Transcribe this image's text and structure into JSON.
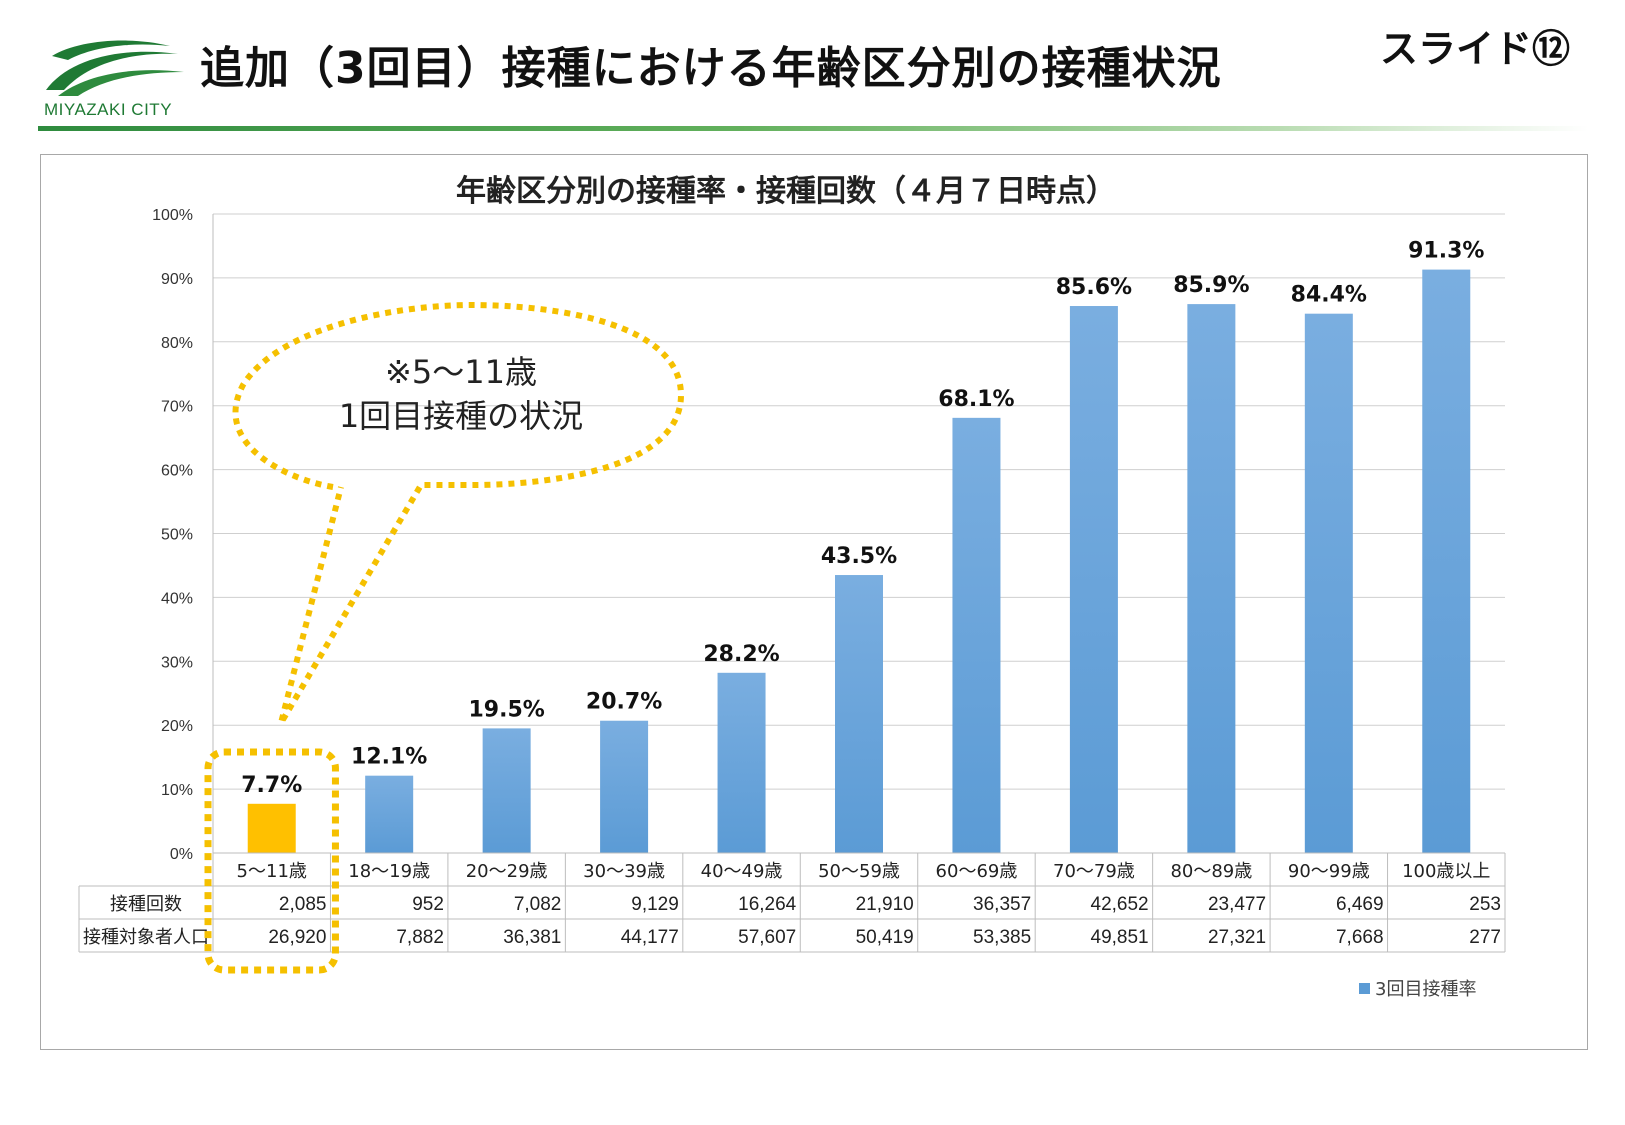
{
  "header": {
    "logo_text": "MIYAZAKI CITY",
    "title": "追加（3回目）接種における年齢区分別の接種状況",
    "slide_no": "スライド⑫"
  },
  "chart_data": {
    "type": "bar",
    "title": "年齢区分別の接種率・接種回数（４月７日時点）",
    "categories": [
      "5～11歳",
      "18～19歳",
      "20～29歳",
      "30～39歳",
      "40～49歳",
      "50～59歳",
      "60～69歳",
      "70～79歳",
      "80～89歳",
      "90～99歳",
      "100歳以上"
    ],
    "series": [
      {
        "name": "3回目接種率",
        "values": [
          7.7,
          12.1,
          19.5,
          20.7,
          28.2,
          43.5,
          68.1,
          85.6,
          85.9,
          84.4,
          91.3
        ],
        "labels": [
          "7.7%",
          "12.1%",
          "19.5%",
          "20.7%",
          "28.2%",
          "43.5%",
          "68.1%",
          "85.6%",
          "85.9%",
          "84.4%",
          "91.3%"
        ]
      }
    ],
    "ylim": [
      0,
      100
    ],
    "yticks": [
      "0%",
      "10%",
      "20%",
      "30%",
      "40%",
      "50%",
      "60%",
      "70%",
      "80%",
      "90%",
      "100%"
    ],
    "grid": true,
    "legend": "bottom-right",
    "highlight_index": 0,
    "colors": {
      "bar": "#5b9bd5",
      "bar_top": "#7aaee0",
      "highlight": "#ffc000",
      "callout": "#f5c000"
    },
    "callout": {
      "line1": "※5～11歳",
      "line2": "1回目接種の状況"
    },
    "table": {
      "rows": [
        {
          "label": "接種回数",
          "values": [
            "2,085",
            "952",
            "7,082",
            "9,129",
            "16,264",
            "21,910",
            "36,357",
            "42,652",
            "23,477",
            "6,469",
            "253"
          ]
        },
        {
          "label": "接種対象者人口",
          "values": [
            "26,920",
            "7,882",
            "36,381",
            "44,177",
            "57,607",
            "50,419",
            "53,385",
            "49,851",
            "27,321",
            "7,668",
            "277"
          ]
        }
      ]
    }
  }
}
